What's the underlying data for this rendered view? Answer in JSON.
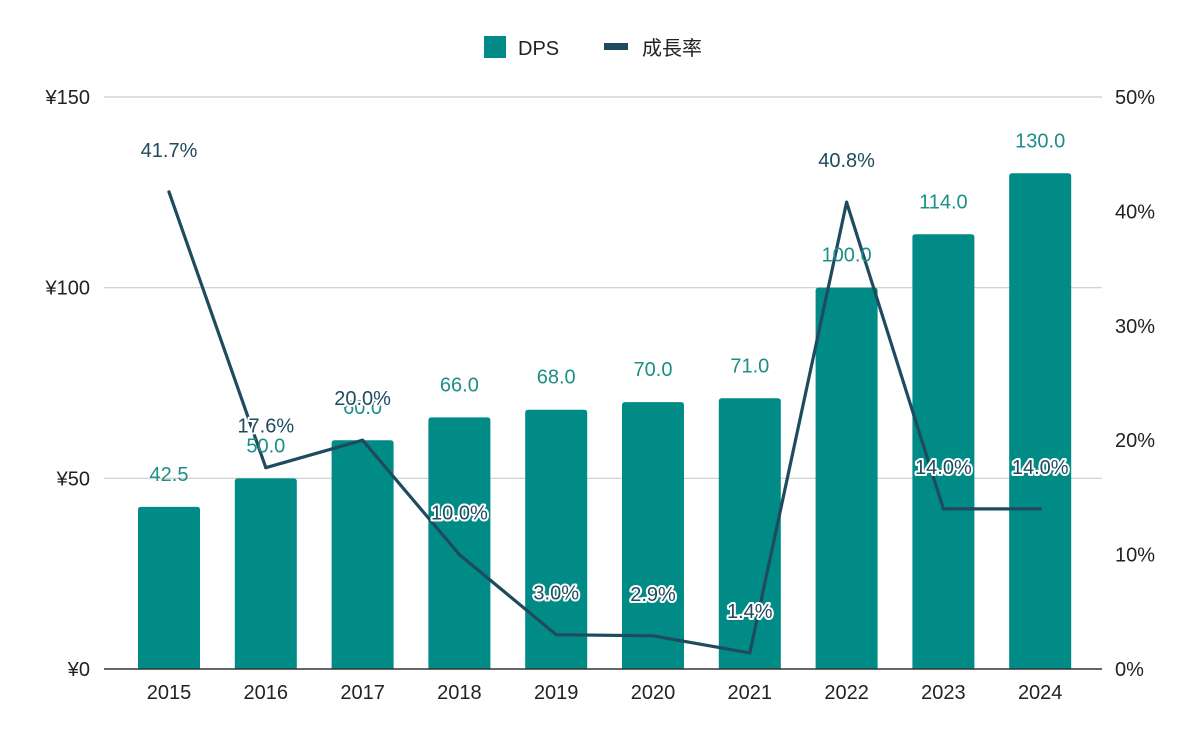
{
  "chart_data": {
    "type": "bar",
    "title": "",
    "categories": [
      "2015",
      "2016",
      "2017",
      "2018",
      "2019",
      "2020",
      "2021",
      "2022",
      "2023",
      "2024"
    ],
    "series": [
      {
        "name": "DPS",
        "type": "bar",
        "axis": "left",
        "color": "#008b86",
        "values": [
          42.5,
          50.0,
          60.0,
          66.0,
          68.0,
          70.0,
          71.0,
          100.0,
          114.0,
          130.0
        ],
        "labels": [
          "42.5",
          "50.0",
          "60.0",
          "66.0",
          "68.0",
          "70.0",
          "71.0",
          "100.0",
          "114.0",
          "130.0"
        ]
      },
      {
        "name": "成長率",
        "type": "line",
        "axis": "right",
        "color": "#1e4b5e",
        "values": [
          41.7,
          17.6,
          20.0,
          10.0,
          3.0,
          2.9,
          1.4,
          40.8,
          14.0,
          14.0
        ],
        "labels": [
          "41.7%",
          "17.6%",
          "20.0%",
          "10.0%",
          "3.0%",
          "2.9%",
          "1.4%",
          "40.8%",
          "14.0%",
          "14.0%"
        ]
      }
    ],
    "y_left": {
      "range": [
        0,
        150
      ],
      "ticks": [
        0,
        50,
        100,
        150
      ],
      "tick_labels": [
        "¥0",
        "¥50",
        "¥100",
        "¥150"
      ]
    },
    "y_right": {
      "range": [
        0,
        50
      ],
      "ticks": [
        0,
        10,
        20,
        30,
        40,
        50
      ],
      "tick_labels": [
        "0%",
        "10%",
        "20%",
        "30%",
        "40%",
        "50%"
      ]
    },
    "grid": true,
    "legend": {
      "position": "top-center",
      "entries": [
        "DPS",
        "成長率"
      ]
    },
    "colors": {
      "bar": "#008b86",
      "bar_label": "#1b8f88",
      "line": "#1e4b5e",
      "grid": "#cccccc",
      "axis": "#333333"
    }
  }
}
